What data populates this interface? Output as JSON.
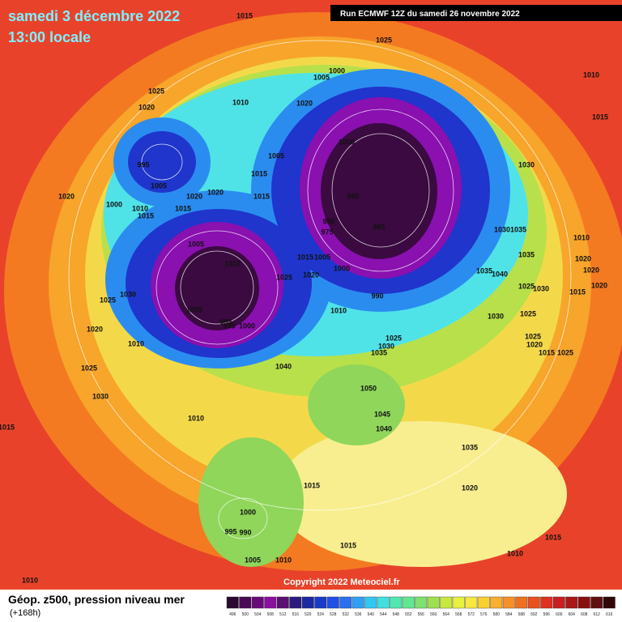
{
  "header": {
    "date": "samedi 3 décembre 2022",
    "time": "13:00 locale",
    "run": "Run ECMWF 12Z du samedi 26 novembre 2022"
  },
  "map": {
    "pressure_labels": [
      1015,
      1025,
      1000,
      1005,
      1010,
      1025,
      1010,
      1020,
      1020,
      1015,
      1000,
      1005,
      1030,
      995,
      1015,
      1005,
      1020,
      1020,
      1015,
      1020,
      990,
      1000,
      1010,
      1015,
      1015,
      980,
      985,
      975,
      1030,
      1035,
      1010,
      1005,
      1015,
      1005,
      1035,
      1020,
      1020,
      1010,
      1000,
      1035,
      1040,
      1020,
      1025,
      1020,
      1025,
      1030,
      1015,
      990,
      1030,
      1025,
      1005,
      1010,
      1030,
      1025,
      995,
      995,
      1000,
      1020,
      1025,
      1025,
      1030,
      1020,
      1010,
      1035,
      1015,
      1025,
      1040,
      1025,
      1050,
      1030,
      1045,
      1010,
      1040,
      1015,
      1035,
      1015,
      1020,
      1000,
      995,
      990,
      1015,
      1015,
      1010,
      1005,
      1010,
      1010
    ]
  },
  "copyright": "Copyright 2022 Meteociel.fr",
  "legend": {
    "title": "Géop. z500, pression niveau mer",
    "lead": "(+168h)",
    "values": [
      496,
      500,
      504,
      508,
      512,
      516,
      520,
      524,
      528,
      532,
      536,
      540,
      544,
      548,
      552,
      556,
      560,
      564,
      568,
      572,
      576,
      580,
      584,
      588,
      592,
      596,
      600,
      604,
      608,
      612,
      616
    ]
  }
}
